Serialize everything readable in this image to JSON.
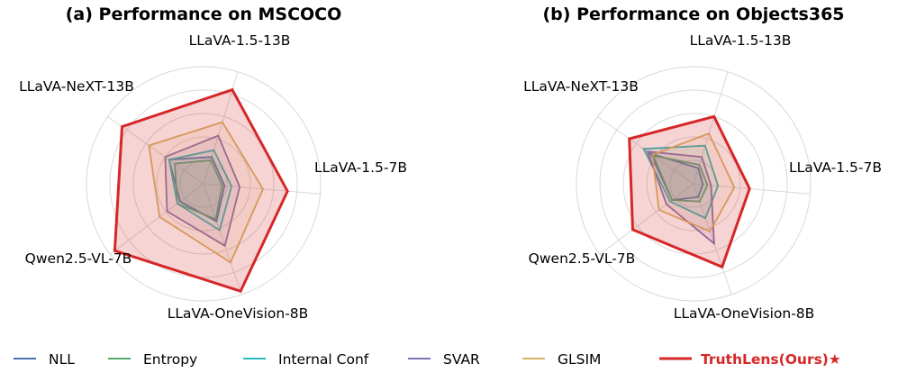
{
  "legend": [
    {
      "name": "NLL",
      "color": "#4c72b0",
      "bold": false
    },
    {
      "name": "Entropy",
      "color": "#55a868",
      "bold": false
    },
    {
      "name": "Internal Conf",
      "color": "#2bbcbc",
      "bold": false
    },
    {
      "name": "SVAR",
      "color": "#8172b3",
      "bold": false
    },
    {
      "name": "GLSIM",
      "color": "#d6b46a",
      "bold": false
    },
    {
      "name": "TruthLens(Ours)★",
      "color": "#d62728",
      "bold": true
    }
  ],
  "chart_data": [
    {
      "type": "radar",
      "title": "(a) Performance on MSCOCO",
      "categories": [
        "LLaVA-1.5-7B",
        "LLaVA-1.5-13B",
        "LLaVA-NeXT-13B",
        "Qwen2.5-VL-7B",
        "LLaVA-OneVision-8B"
      ],
      "range": [
        0,
        1
      ],
      "grid": true,
      "series": [
        {
          "name": "NLL",
          "values": [
            0.18,
            0.24,
            0.36,
            0.25,
            0.34
          ]
        },
        {
          "name": "Entropy",
          "values": [
            0.16,
            0.21,
            0.3,
            0.28,
            0.32
          ]
        },
        {
          "name": "Internal Conf",
          "values": [
            0.24,
            0.3,
            0.36,
            0.28,
            0.42
          ]
        },
        {
          "name": "SVAR",
          "values": [
            0.31,
            0.43,
            0.4,
            0.39,
            0.56
          ]
        },
        {
          "name": "GLSIM",
          "values": [
            0.51,
            0.55,
            0.57,
            0.47,
            0.71
          ]
        },
        {
          "name": "TruthLens(Ours)★",
          "values": [
            0.72,
            0.84,
            0.85,
            0.95,
            0.97
          ]
        }
      ]
    },
    {
      "type": "radar",
      "title": "(b) Performance on Objects365",
      "categories": [
        "LLaVA-1.5-7B",
        "LLaVA-1.5-13B",
        "LLaVA-NeXT-13B",
        "Qwen2.5-VL-7B",
        "LLaVA-OneVision-8B"
      ],
      "range": [
        0,
        1
      ],
      "grid": true,
      "series": [
        {
          "name": "NLL",
          "values": [
            0.08,
            0.14,
            0.45,
            0.23,
            0.12
          ]
        },
        {
          "name": "Entropy",
          "values": [
            0.12,
            0.17,
            0.42,
            0.23,
            0.16
          ]
        },
        {
          "name": "Internal Conf",
          "values": [
            0.21,
            0.34,
            0.52,
            0.25,
            0.31
          ]
        },
        {
          "name": "SVAR",
          "values": [
            0.15,
            0.24,
            0.48,
            0.29,
            0.54
          ]
        },
        {
          "name": "GLSIM",
          "values": [
            0.35,
            0.45,
            0.43,
            0.37,
            0.43
          ]
        },
        {
          "name": "TruthLens(Ours)★",
          "values": [
            0.48,
            0.6,
            0.67,
            0.65,
            0.75
          ]
        }
      ]
    }
  ]
}
